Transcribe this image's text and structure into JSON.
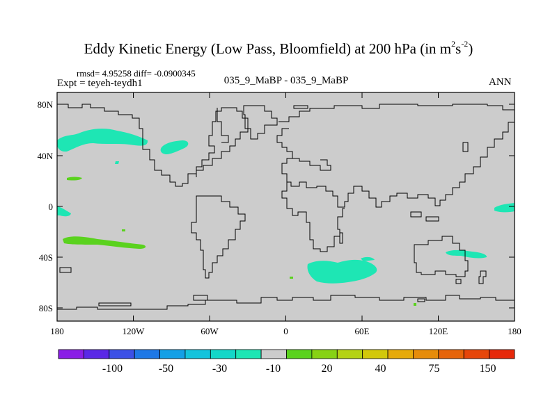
{
  "title": {
    "main": "Eddy Kinetic Energy (Low Pass, Bloomfield) at 200 hPa (in m",
    "sup1": "2",
    "mid": "s",
    "sup2": "-2",
    "close": ")"
  },
  "stats": "rmsd= 4.95258 diff= -0.0900345",
  "expt": "Expt = teyeh-teydh1",
  "case_name": "035_9_MaBP - 035_9_MaBP",
  "season": "ANN",
  "axes": {
    "lat_labels": [
      "80N",
      "40N",
      "0",
      "40S",
      "80S"
    ],
    "lon_labels": [
      "180",
      "120W",
      "60W",
      "0",
      "60E",
      "120E",
      "180"
    ]
  },
  "colorbar": {
    "labels": [
      "-100",
      "-50",
      "-30",
      "-10",
      "20",
      "40",
      "75",
      "150"
    ],
    "colors": [
      "#8a1ee6",
      "#5a28e6",
      "#3c50e6",
      "#1e78e6",
      "#14a0e6",
      "#14c3dc",
      "#14d7c8",
      "#1ee6b4",
      "#cccccc",
      "#5ad21e",
      "#87d214",
      "#b4d214",
      "#d2c80a",
      "#e6aa0a",
      "#e68c0a",
      "#e6640a",
      "#e6460a",
      "#e6280a"
    ]
  },
  "colors": {
    "land_background": "#cccccc",
    "cyan_anomaly": "#1ee6b4",
    "green_anomaly": "#5ad21e",
    "coastline": "#000000"
  }
}
